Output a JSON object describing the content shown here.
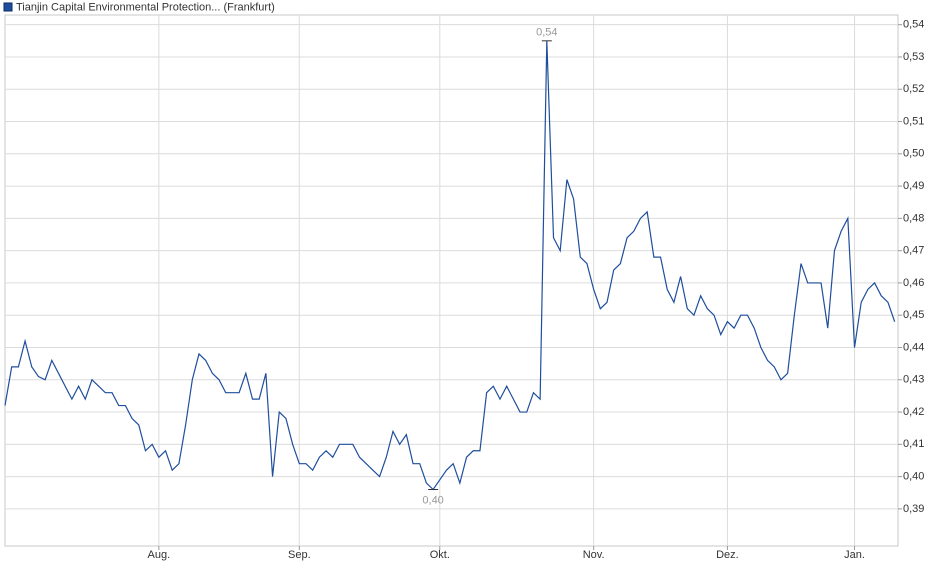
{
  "chart_data": {
    "type": "line",
    "series": [
      {
        "name": "Tianjin Capital Environmental Protection... (Frankfurt)",
        "color": "#1f4e9c",
        "values": [
          0.422,
          0.434,
          0.434,
          0.442,
          0.434,
          0.431,
          0.43,
          0.436,
          0.432,
          0.428,
          0.424,
          0.428,
          0.424,
          0.43,
          0.428,
          0.426,
          0.426,
          0.422,
          0.422,
          0.418,
          0.416,
          0.408,
          0.41,
          0.406,
          0.408,
          0.402,
          0.404,
          0.416,
          0.43,
          0.438,
          0.436,
          0.432,
          0.43,
          0.426,
          0.426,
          0.426,
          0.432,
          0.424,
          0.424,
          0.432,
          0.4,
          0.42,
          0.418,
          0.41,
          0.404,
          0.404,
          0.402,
          0.406,
          0.408,
          0.406,
          0.41,
          0.41,
          0.41,
          0.406,
          0.404,
          0.402,
          0.4,
          0.406,
          0.414,
          0.41,
          0.413,
          0.404,
          0.404,
          0.398,
          0.396,
          0.399,
          0.402,
          0.404,
          0.398,
          0.406,
          0.408,
          0.408,
          0.426,
          0.428,
          0.424,
          0.428,
          0.424,
          0.42,
          0.42,
          0.426,
          0.424,
          0.535,
          0.474,
          0.47,
          0.492,
          0.486,
          0.468,
          0.466,
          0.458,
          0.452,
          0.454,
          0.464,
          0.466,
          0.474,
          0.476,
          0.48,
          0.482,
          0.468,
          0.468,
          0.458,
          0.454,
          0.462,
          0.452,
          0.45,
          0.456,
          0.452,
          0.45,
          0.444,
          0.448,
          0.446,
          0.45,
          0.45,
          0.446,
          0.44,
          0.436,
          0.434,
          0.43,
          0.432,
          0.45,
          0.466,
          0.46,
          0.46,
          0.46,
          0.446,
          0.47,
          0.476,
          0.48,
          0.44,
          0.454,
          0.458,
          0.46,
          0.456,
          0.454,
          0.448
        ],
        "value_labels": [
          null,
          null,
          null,
          null,
          null,
          null,
          null,
          null,
          null,
          null,
          null,
          null,
          null,
          null,
          null,
          null,
          null,
          null,
          null,
          null,
          null,
          null,
          null,
          null,
          null,
          null,
          null,
          null,
          null,
          null,
          null,
          null,
          null,
          null,
          null,
          null,
          null,
          null,
          null,
          null,
          null,
          null,
          null,
          null,
          null,
          null,
          null,
          null,
          null,
          null,
          null,
          null,
          null,
          null,
          null,
          null,
          null,
          null,
          null,
          null,
          null,
          null,
          null,
          null,
          "0,40",
          null,
          null,
          null,
          null,
          null,
          null,
          null,
          null,
          null,
          null,
          null,
          null,
          null,
          null,
          null,
          null,
          "0,54",
          null,
          null,
          null,
          null,
          null,
          null,
          null,
          null,
          null,
          null,
          null,
          null,
          null,
          null,
          null,
          null,
          null,
          null,
          null,
          null,
          null,
          null,
          null,
          null,
          null,
          null,
          null,
          null,
          null,
          null,
          null,
          null,
          null,
          null,
          null,
          null,
          null,
          null,
          null,
          null,
          null,
          null,
          null,
          null,
          null,
          null,
          null,
          null,
          null,
          null,
          null,
          null
        ]
      }
    ],
    "x": [
      0,
      1,
      2,
      3,
      4,
      5,
      6,
      7,
      8,
      9,
      10,
      11,
      12,
      13,
      14,
      15,
      16,
      17,
      18,
      19,
      20,
      21,
      22,
      23,
      24,
      25,
      26,
      27,
      28,
      29,
      30,
      31,
      32,
      33,
      34,
      35,
      36,
      37,
      38,
      39,
      40,
      41,
      42,
      43,
      44,
      45,
      46,
      47,
      48,
      49,
      50,
      51,
      52,
      53,
      54,
      55,
      56,
      57,
      58,
      59,
      60,
      61,
      62,
      63,
      64,
      65,
      66,
      67,
      68,
      69,
      70,
      71,
      72,
      73,
      74,
      75,
      76,
      77,
      78,
      79,
      80,
      81,
      82,
      83,
      84,
      85,
      86,
      87,
      88,
      89,
      90,
      91,
      92,
      93,
      94,
      95,
      96,
      97,
      98,
      99,
      100,
      101,
      102,
      103,
      104,
      105,
      106,
      107,
      108,
      109,
      110,
      111,
      112,
      113,
      114,
      115,
      116,
      117,
      118,
      119,
      120,
      121,
      122,
      123,
      124,
      125,
      126,
      127,
      128,
      129,
      130,
      131,
      132,
      133
    ],
    "xlim": [
      0,
      133.5
    ],
    "xticks": [
      {
        "value": 23,
        "label": "Aug."
      },
      {
        "value": 44,
        "label": "Sep."
      },
      {
        "value": 65,
        "label": "Okt."
      },
      {
        "value": 88,
        "label": "Nov."
      },
      {
        "value": 108,
        "label": "Dez."
      },
      {
        "value": 127,
        "label": "Jan."
      }
    ],
    "ylim": [
      0.3785,
      0.543
    ],
    "yticks": [
      {
        "value": 0.39,
        "label": "0,39"
      },
      {
        "value": 0.4,
        "label": "0,40"
      },
      {
        "value": 0.41,
        "label": "0,41"
      },
      {
        "value": 0.42,
        "label": "0,42"
      },
      {
        "value": 0.43,
        "label": "0,43"
      },
      {
        "value": 0.44,
        "label": "0,44"
      },
      {
        "value": 0.45,
        "label": "0,45"
      },
      {
        "value": 0.46,
        "label": "0,46"
      },
      {
        "value": 0.47,
        "label": "0,47"
      },
      {
        "value": 0.48,
        "label": "0,48"
      },
      {
        "value": 0.49,
        "label": "0,49"
      },
      {
        "value": 0.5,
        "label": "0,50"
      },
      {
        "value": 0.51,
        "label": "0,51"
      },
      {
        "value": 0.52,
        "label": "0,52"
      },
      {
        "value": 0.53,
        "label": "0,53"
      },
      {
        "value": 0.54,
        "label": "0,54"
      }
    ],
    "grid": true
  }
}
